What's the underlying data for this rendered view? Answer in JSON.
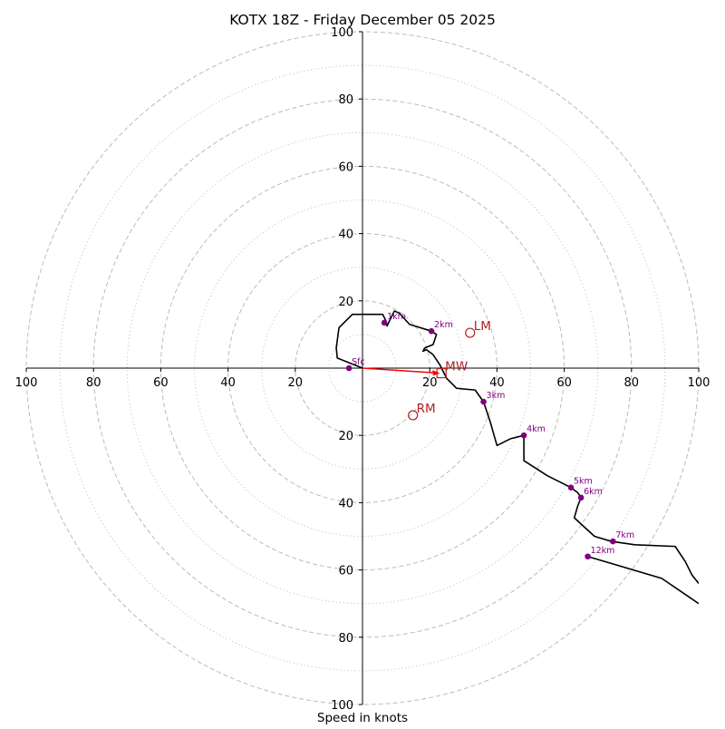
{
  "chart_data": {
    "type": "hodograph",
    "title": "KOTX 18Z - Friday December 05 2025",
    "xlabel": "Speed in knots",
    "rings": {
      "major": [
        20,
        40,
        60,
        80,
        100
      ],
      "minor": [
        10,
        30,
        50,
        70,
        90
      ]
    },
    "axis_range": [
      -100,
      100
    ],
    "x_tick_labels": [
      "100",
      "80",
      "60",
      "40",
      "20",
      "20",
      "40",
      "60",
      "80",
      "100"
    ],
    "y_tick_labels": [
      "100",
      "80",
      "60",
      "40",
      "20",
      "20",
      "40",
      "60",
      "80",
      "100"
    ],
    "tick_values": [
      -100,
      -80,
      -60,
      -40,
      -20,
      20,
      40,
      60,
      80,
      100
    ],
    "trace": [
      [
        0,
        0
      ],
      [
        -7.5,
        3
      ],
      [
        -7.8,
        6
      ],
      [
        -7,
        12
      ],
      [
        -3,
        16
      ],
      [
        2,
        16
      ],
      [
        6,
        16
      ],
      [
        7,
        14
      ],
      [
        7.3,
        12.5
      ],
      [
        8,
        14
      ],
      [
        9.5,
        17
      ],
      [
        11,
        16.3
      ],
      [
        14,
        13
      ],
      [
        20.5,
        11
      ],
      [
        22,
        10
      ],
      [
        21,
        7
      ],
      [
        18.5,
        6
      ],
      [
        18,
        5
      ],
      [
        19,
        5.5
      ],
      [
        21,
        4
      ],
      [
        23,
        1
      ],
      [
        25,
        -3
      ],
      [
        28,
        -6
      ],
      [
        33.5,
        -6.5
      ],
      [
        36,
        -10
      ],
      [
        38,
        -16
      ],
      [
        40,
        -23
      ],
      [
        44,
        -21
      ],
      [
        48,
        -20
      ],
      [
        48,
        -27.5
      ],
      [
        55,
        -32
      ],
      [
        62,
        -35.5
      ],
      [
        64,
        -37
      ],
      [
        65,
        -38.5
      ],
      [
        64,
        -41
      ],
      [
        63,
        -44.5
      ],
      [
        69,
        -50
      ],
      [
        74,
        -51.5
      ],
      [
        81,
        -52.5
      ],
      [
        93,
        -53
      ],
      [
        96,
        -57.5
      ],
      [
        98,
        -61.5
      ],
      [
        100,
        -64
      ]
    ],
    "upper_trace": [
      [
        67,
        -56
      ],
      [
        89,
        -62.5
      ],
      [
        100,
        -70
      ]
    ],
    "height_markers": [
      {
        "label": "Sfc",
        "u": -4,
        "v": 0
      },
      {
        "label": "1km",
        "u": 6.5,
        "v": 13.5
      },
      {
        "label": "2km",
        "u": 20.5,
        "v": 11
      },
      {
        "label": "3km",
        "u": 36,
        "v": -10
      },
      {
        "label": "4km",
        "u": 48,
        "v": -20
      },
      {
        "label": "5km",
        "u": 62,
        "v": -35.5
      },
      {
        "label": "6km",
        "u": 65,
        "v": -38.5
      },
      {
        "label": "7km",
        "u": 74.5,
        "v": -51.5
      },
      {
        "label": "12km",
        "u": 67,
        "v": -56
      }
    ],
    "motion_points": [
      {
        "label": "LM",
        "u": 32,
        "v": 10.5,
        "marker": "circle"
      },
      {
        "label": "RM",
        "u": 15,
        "v": -14,
        "marker": "circle"
      },
      {
        "label": "MW",
        "u": 23.5,
        "v": -1.5,
        "marker": "square"
      }
    ],
    "shear_arrow": {
      "from": [
        0,
        0
      ],
      "to": [
        23,
        -1.5
      ]
    }
  },
  "colors": {
    "trace": "#000000",
    "marker": "#800080",
    "motion": "#b22222",
    "arrow": "#ff0000",
    "grid": "#bbbbbb"
  }
}
